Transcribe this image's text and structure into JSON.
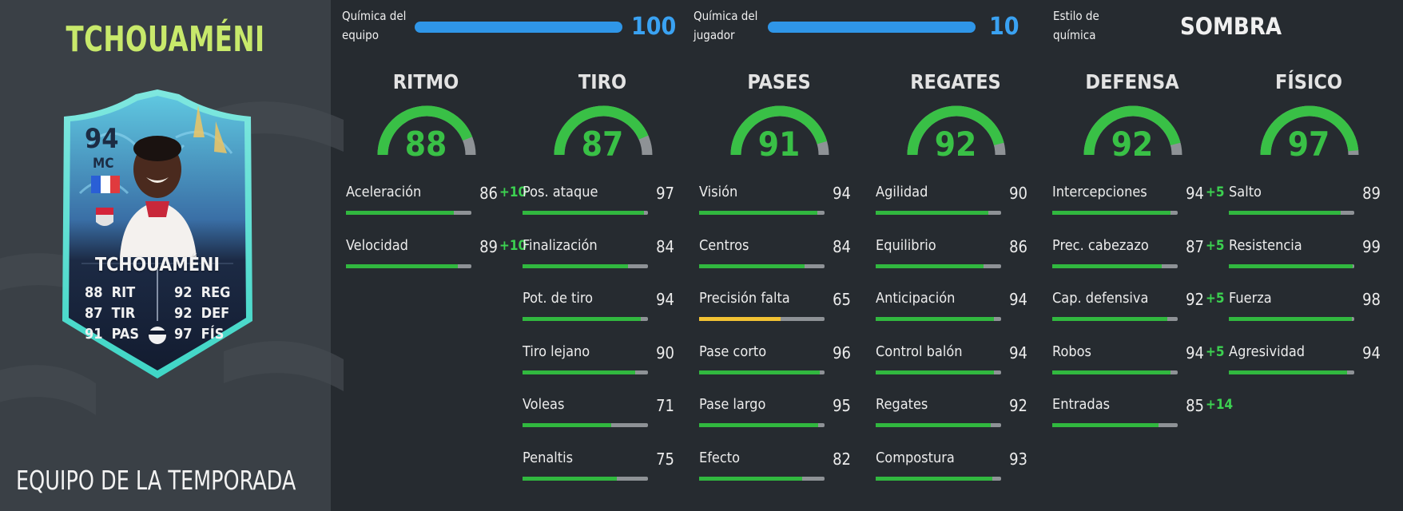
{
  "player": {
    "name": "TCHOUAMÉNI",
    "subtitle": "EQUIPO DE LA TEMPORADA",
    "card": {
      "rating": "94",
      "position": "MC",
      "name": "TCHOUAMÉNI",
      "stats_left": [
        {
          "value": "88",
          "label": "RIT"
        },
        {
          "value": "87",
          "label": "TIR"
        },
        {
          "value": "91",
          "label": "PAS"
        }
      ],
      "stats_right": [
        {
          "value": "92",
          "label": "REG"
        },
        {
          "value": "92",
          "label": "DEF"
        },
        {
          "value": "97",
          "label": "FÍS"
        }
      ]
    }
  },
  "chemistry": {
    "team_label_line1": "Química del",
    "team_label_line2": "equipo",
    "team_value": "100",
    "team_fraction": 1.0,
    "player_label_line1": "Química del",
    "player_label_line2": "jugador",
    "player_value": "10",
    "player_fraction": 1.0,
    "style_label_line1": "Estilo de",
    "style_label_line2": "química",
    "style_value": "SOMBRA"
  },
  "columns": [
    {
      "title": "RITMO",
      "value": "88",
      "stats": [
        {
          "label": "Aceleración",
          "value": "86",
          "bonus": "+10"
        },
        {
          "label": "Velocidad",
          "value": "89",
          "bonus": "+10"
        }
      ]
    },
    {
      "title": "TIRO",
      "value": "87",
      "stats": [
        {
          "label": "Pos. ataque",
          "value": "97"
        },
        {
          "label": "Finalización",
          "value": "84"
        },
        {
          "label": "Pot. de tiro",
          "value": "94"
        },
        {
          "label": "Tiro lejano",
          "value": "90"
        },
        {
          "label": "Voleas",
          "value": "71"
        },
        {
          "label": "Penaltis",
          "value": "75"
        }
      ]
    },
    {
      "title": "PASES",
      "value": "91",
      "stats": [
        {
          "label": "Visión",
          "value": "94"
        },
        {
          "label": "Centros",
          "value": "84"
        },
        {
          "label": "Precisión falta",
          "value": "65",
          "color": "#f2c233"
        },
        {
          "label": "Pase corto",
          "value": "96"
        },
        {
          "label": "Pase largo",
          "value": "95"
        },
        {
          "label": "Efecto",
          "value": "82"
        }
      ]
    },
    {
      "title": "REGATES",
      "value": "92",
      "stats": [
        {
          "label": "Agilidad",
          "value": "90"
        },
        {
          "label": "Equilibrio",
          "value": "86"
        },
        {
          "label": "Anticipación",
          "value": "94"
        },
        {
          "label": "Control balón",
          "value": "94"
        },
        {
          "label": "Regates",
          "value": "92"
        },
        {
          "label": "Compostura",
          "value": "93"
        }
      ]
    },
    {
      "title": "DEFENSA",
      "value": "92",
      "stats": [
        {
          "label": "Intercepciones",
          "value": "94",
          "bonus": "+5"
        },
        {
          "label": "Prec. cabezazo",
          "value": "87",
          "bonus": "+5"
        },
        {
          "label": "Cap. defensiva",
          "value": "92",
          "bonus": "+5"
        },
        {
          "label": "Robos",
          "value": "94",
          "bonus": "+5"
        },
        {
          "label": "Entradas",
          "value": "85",
          "bonus": "+14"
        }
      ]
    },
    {
      "title": "FÍSICO",
      "value": "97",
      "stats": [
        {
          "label": "Salto",
          "value": "89"
        },
        {
          "label": "Resistencia",
          "value": "99"
        },
        {
          "label": "Fuerza",
          "value": "98"
        },
        {
          "label": "Agresividad",
          "value": "94"
        }
      ]
    }
  ],
  "colors": {
    "accent_green": "#39c046",
    "chem_blue": "#2f96e8",
    "name_green": "#c8e96b",
    "warning_amber": "#f2c233"
  }
}
